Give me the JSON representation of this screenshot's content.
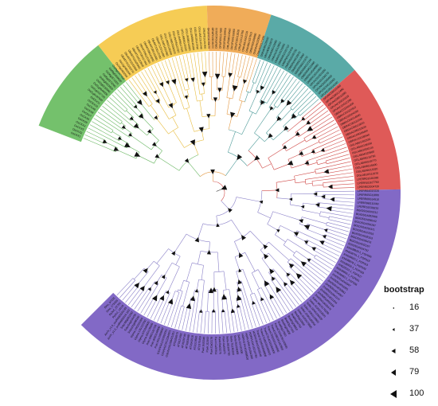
{
  "figure": {
    "type": "circular-phylogenetic-tree",
    "branch_color": "#9a9acd",
    "node_marker_color": "#111111"
  },
  "clades": [
    {
      "name": "",
      "color": "#74c16c"
    },
    {
      "name": "",
      "color": "#f6cc55"
    },
    {
      "name": "",
      "color": "#f0ac59"
    },
    {
      "name": "",
      "color": "#5aaaa7"
    },
    {
      "name": "",
      "color": "#df5a58"
    },
    {
      "name": "",
      "color": "#8269c6"
    }
  ],
  "tip_labels": [
    "OsCKX1",
    "OsCKX2",
    "OsCKX3",
    "OsCKX4",
    "OsCKX5",
    "OsCKX6",
    "OsCKX7",
    "OsCKX8",
    "OsCKX9",
    "OsCKX10",
    "OsCKX11",
    "Os01g0187600",
    "Os01g0197700",
    "Os01g0940000",
    "Os02g0220000",
    "Os04g0523500",
    "Os05g0374200",
    "Os06g0572300",
    "Os08g0460600",
    "Os09g0447400",
    "Os10g0483500",
    "Os12g0480200",
    "OBART01G02270",
    "OBART01G32590",
    "OBART02G05940",
    "OBART04G22840",
    "OBART05G17440",
    "OBART06G20340",
    "OBART08G16090",
    "OBART09G16300",
    "OBART10G13700",
    "OBART12G15490",
    "OGLUM01G02060",
    "OGLUM01G36350",
    "OGLUM02G06020",
    "OGLUM04G22320",
    "OGLUM05G17110",
    "OGLUM06G20320",
    "OGLUM08G16020",
    "OGLUM09G15390",
    "OGLUM10G13790",
    "OGLUM12G15340",
    "ORUFI01G01950",
    "ORUFI01G39470",
    "ORUFI02G06000",
    "ORUFI04G25670",
    "ORUFI05G17580",
    "ORUFI06G19950",
    "ORUFI08G16560",
    "ORUFI09G15960",
    "ORUFI10G13520",
    "ORUFI12G15790",
    "ONIVA01G02230",
    "ONIVA01G37910",
    "ONIVA02G06690",
    "ONIVA04G20550",
    "ONIVA05G17490",
    "ONIVA06G20500",
    "ONIVA08G15870",
    "ONIVA09G15680",
    "ONIVA10G12850",
    "ONIVA12G15050",
    "OMERI01G01710",
    "OMERI01G31410",
    "OMERI02G05700",
    "OMERI04G16970",
    "OMERI05G13860",
    "OMERI06G15370",
    "OMERI08G12150",
    "OMERI09G11090",
    "OMERI10G09980",
    "OMERI12G11860",
    "OPUNC01G01820",
    "OPUNC01G30170",
    "OPUNC02G05030",
    "OPUNC04G18360",
    "OPUNC05G14280",
    "OPUNC06G15360",
    "OPUNC08G12480",
    "OPUNC09G11890",
    "OPUNC10G10120",
    "OPUNC12G12290",
    "OBRAC01G01450",
    "OBRAC01G24910",
    "OBRAC02G04180",
    "OBRAC04G14990",
    "OBRAC05G11240",
    "OBRAC06G13010",
    "OBRAC08G10620",
    "OBRAC09G09400",
    "OBRAC10G08540",
    "OGLAB01G02190",
    "OGLAB01G38150",
    "OGLAB02G06140",
    "OGLAB04G20980",
    "OGLAB05G16790",
    "OGLAB06G19770",
    "OGLAB08G15600",
    "OGLAB09G15320",
    "OGLAB10G12970",
    "LPERR01G01580",
    "LPERR01G27760",
    "LPERR02G04720",
    "LPERR04G15220",
    "LPERR05G11880",
    "LPERR06G14510",
    "LPERR08G11660",
    "LPERR10G09210",
    "BGIOSGA000212",
    "BGIOSGA002968",
    "BGIOSGA006542",
    "BGIOSGA016287",
    "BGIOSGA019371",
    "BGIOSGA022815",
    "BGIOSGA028153",
    "BGIOSGA030476",
    "BGIOSGA032167",
    "BGIOSGA034792",
    "KN538829.1_FGP005",
    "KN538701.1_FGP019",
    "KN539020.1_FGP013",
    "KN538878.1_FGP043",
    "KN538916.1_FGP033",
    "KN539161.1_FGP027",
    "KN538805.1_FGP061",
    "KN538963.1_FGP006",
    "Zm00001d042907",
    "Zm00001d018391",
    "Zm00001d033862",
    "Zm00001d014367",
    "Zm00001d041147",
    "Zm00001d011934",
    "Zm00001d050184",
    "Zm00001d025472",
    "Sobic.001G170200",
    "Sobic.003G022600",
    "Sobic.004G106400",
    "Sobic.006G103800",
    "Sobic.009G185500",
    "Sobic.010G073800",
    "Bradi1g02680",
    "Bradi1g34750",
    "Bradi2g09850",
    "Bradi3g17410",
    "Bradi4g24600",
    "Bradi5g17850",
    "TraesCS3A02G143500",
    "TraesCS3B02G162800",
    "TraesCS3D02G144900",
    "TraesCS1A02G066900",
    "TraesCS1B02G085500",
    "TraesCS1D02G068600",
    "HORVU3Hr1G035240",
    "HORVU1Hr1G014760",
    "HORVU5Hr1G054390",
    "HORVU7Hr1G088520",
    "Seita.1G131500",
    "Seita.5G226000",
    "Seita.7G180200",
    "Seita.9G368700",
    "Pavir.Aa00870",
    "Pavir.Ba03275",
    "Pavir.Ca00914",
    "Pavir.Da02178",
    "Pavir.J12493",
    "Pavir.Ib03346",
    "AT1G75450",
    "AT2G19500",
    "AT2G41510",
    "AT3G63440",
    "AT4G29740",
    "AT5G21482",
    "AT5G56970",
    "GSVIVG01028421001",
    "GSVIVG01012344001",
    "GSVIVG01031950001",
    "Potri.001G083600",
    "Potri.003G148900",
    "Potri.006G181700",
    "Glyma.02G128500",
    "Glyma.07G048900",
    "Glyma.13G122200",
    "Glyma.16G022300",
    "Solyc01g088160",
    "Solyc04g016430",
    "Solyc08g061930",
    "AmTr_v1.0_scaffold00010.163",
    "AmTr_v1.0_scaffold00052.85",
    "Pp3c2_14110",
    "Pp3c6_22750",
    "Smo_173459",
    "Smo_97126"
  ],
  "legend": {
    "title": "bootstrap",
    "items": [
      {
        "label": "16",
        "value": 16
      },
      {
        "label": "37",
        "value": 37
      },
      {
        "label": "58",
        "value": 58
      },
      {
        "label": "79",
        "value": 79
      },
      {
        "label": "100",
        "value": 100
      }
    ]
  }
}
